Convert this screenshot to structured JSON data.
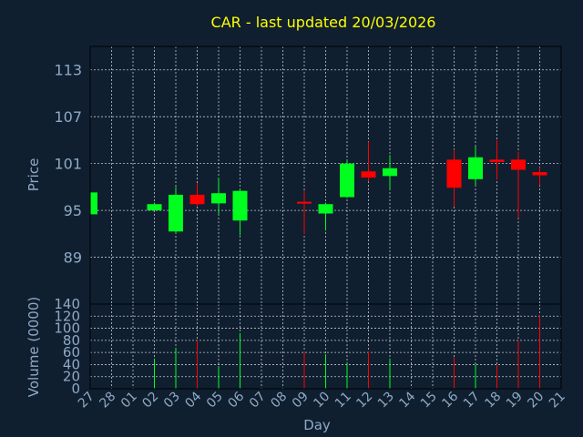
{
  "title": "CAR - last updated 20/03/2026",
  "colors": {
    "background": "#0f1f30",
    "up": "#00ff1e",
    "down": "#ff0000",
    "title": "#ffff00",
    "axis_text": "#8fa9c4",
    "grid": "#ffffff"
  },
  "chart_data": [
    {
      "type": "candlestick",
      "title": "CAR - last updated 20/03/2026",
      "ylabel": "Price",
      "ylim": [
        83,
        116
      ],
      "yticks": [
        89,
        95,
        101,
        107,
        113
      ],
      "grid": true,
      "categories": [
        "27",
        "28",
        "01",
        "02",
        "03",
        "04",
        "05",
        "06",
        "07",
        "08",
        "09",
        "10",
        "11",
        "12",
        "13",
        "14",
        "15",
        "16",
        "17",
        "18",
        "19",
        "20",
        "21"
      ],
      "candles": [
        {
          "x": "27",
          "open": 94.5,
          "high": 97.5,
          "low": 94.5,
          "close": 97.3
        },
        {
          "x": "02",
          "open": 95.0,
          "high": 96.0,
          "low": 95.0,
          "close": 95.8
        },
        {
          "x": "03",
          "open": 92.3,
          "high": 98.0,
          "low": 92.0,
          "close": 97.0
        },
        {
          "x": "04",
          "open": 97.0,
          "high": 98.5,
          "low": 95.5,
          "close": 95.8
        },
        {
          "x": "05",
          "open": 95.9,
          "high": 99.2,
          "low": 94.5,
          "close": 97.2
        },
        {
          "x": "06",
          "open": 93.7,
          "high": 97.7,
          "low": 91.8,
          "close": 97.5
        },
        {
          "x": "09",
          "open": 96.1,
          "high": 97.5,
          "low": 92.0,
          "close": 95.9
        },
        {
          "x": "10",
          "open": 94.6,
          "high": 96.0,
          "low": 92.4,
          "close": 95.8
        },
        {
          "x": "11",
          "open": 96.7,
          "high": 101.5,
          "low": 96.6,
          "close": 101.0
        },
        {
          "x": "12",
          "open": 100.0,
          "high": 103.8,
          "low": 98.7,
          "close": 99.2
        },
        {
          "x": "13",
          "open": 99.4,
          "high": 102.1,
          "low": 97.7,
          "close": 100.4
        },
        {
          "x": "16",
          "open": 101.5,
          "high": 102.8,
          "low": 95.5,
          "close": 97.9
        },
        {
          "x": "17",
          "open": 99.0,
          "high": 103.2,
          "low": 98.2,
          "close": 101.8
        },
        {
          "x": "18",
          "open": 101.5,
          "high": 104.0,
          "low": 99.0,
          "close": 101.2
        },
        {
          "x": "19",
          "open": 101.5,
          "high": 102.5,
          "low": 94.0,
          "close": 100.2
        },
        {
          "x": "20",
          "open": 99.9,
          "high": 100.5,
          "low": 98.2,
          "close": 99.5
        }
      ]
    },
    {
      "type": "bar",
      "ylabel": "Volume (0000)",
      "xlabel": "Day",
      "ylim": [
        0,
        140
      ],
      "yticks": [
        0,
        20,
        40,
        60,
        80,
        100,
        120,
        140
      ],
      "grid": true,
      "categories": [
        "27",
        "28",
        "01",
        "02",
        "03",
        "04",
        "05",
        "06",
        "07",
        "08",
        "09",
        "10",
        "11",
        "12",
        "13",
        "14",
        "15",
        "16",
        "17",
        "18",
        "19",
        "20",
        "21"
      ],
      "bars": [
        {
          "x": "02",
          "value": 50,
          "direction": "up"
        },
        {
          "x": "03",
          "value": 68,
          "direction": "up"
        },
        {
          "x": "04",
          "value": 80,
          "direction": "down"
        },
        {
          "x": "05",
          "value": 37,
          "direction": "up"
        },
        {
          "x": "06",
          "value": 92,
          "direction": "up"
        },
        {
          "x": "09",
          "value": 62,
          "direction": "down"
        },
        {
          "x": "10",
          "value": 57,
          "direction": "up"
        },
        {
          "x": "11",
          "value": 42,
          "direction": "up"
        },
        {
          "x": "12",
          "value": 62,
          "direction": "down"
        },
        {
          "x": "13",
          "value": 50,
          "direction": "up"
        },
        {
          "x": "16",
          "value": 52,
          "direction": "down"
        },
        {
          "x": "17",
          "value": 40,
          "direction": "up"
        },
        {
          "x": "18",
          "value": 39,
          "direction": "down"
        },
        {
          "x": "19",
          "value": 80,
          "direction": "down"
        },
        {
          "x": "20",
          "value": 122,
          "direction": "down"
        }
      ]
    }
  ]
}
